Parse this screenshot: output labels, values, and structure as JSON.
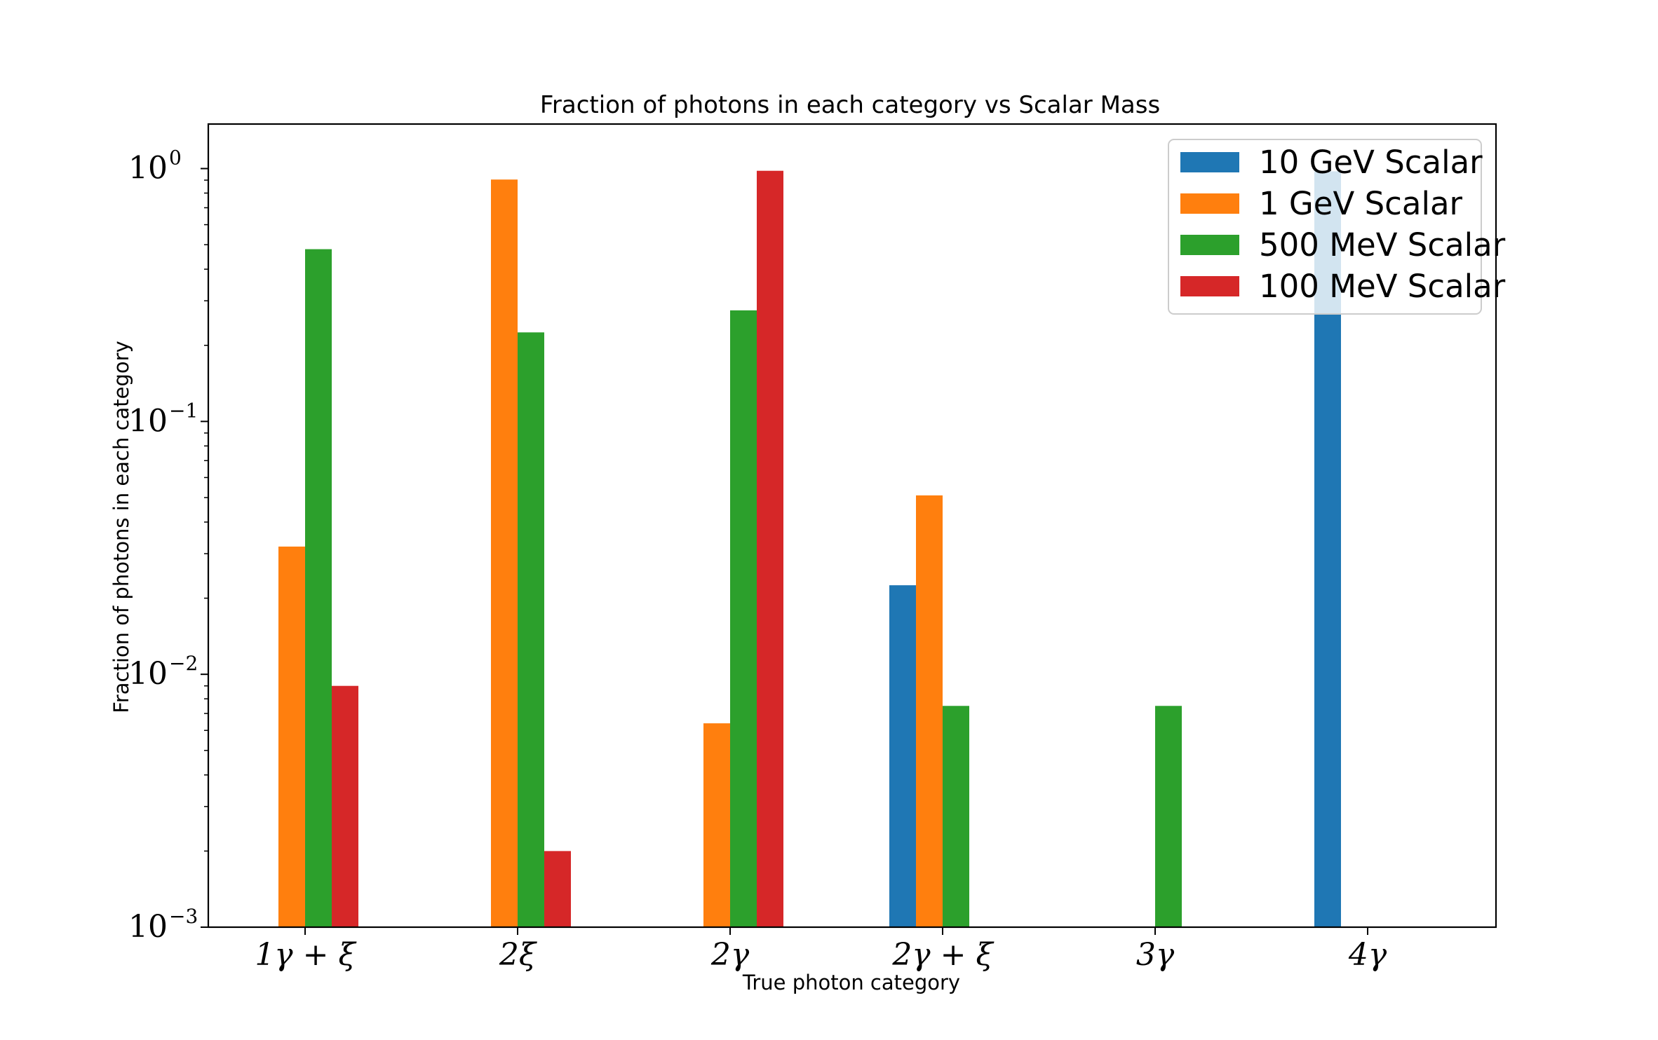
{
  "chart_data": {
    "type": "bar",
    "title": "Fraction of photons in each category vs Scalar Mass",
    "xlabel": "True photon category",
    "ylabel": "Fraction of photons in each category",
    "yscale": "log",
    "ylim": [
      0.001,
      1.5
    ],
    "yticks": [
      {
        "value": 1,
        "base": "10",
        "exp": "0"
      },
      {
        "value": 0.1,
        "base": "10",
        "exp": "−1"
      },
      {
        "value": 0.01,
        "base": "10",
        "exp": "−2"
      },
      {
        "value": 0.001,
        "base": "10",
        "exp": "−3"
      }
    ],
    "categories": [
      "1γ + ξ",
      "2ξ",
      "2γ",
      "2γ + ξ",
      "3γ",
      "4γ"
    ],
    "series": [
      {
        "name": "10 GeV Scalar",
        "color": "#1f77b4",
        "values": [
          0,
          0,
          0,
          0.0225,
          0,
          0.975
        ]
      },
      {
        "name": "1 GeV Scalar",
        "color": "#ff7f0e",
        "values": [
          0.032,
          0.905,
          0.0064,
          0.051,
          0,
          0
        ]
      },
      {
        "name": "500 MeV Scalar",
        "color": "#2ca02c",
        "values": [
          0.48,
          0.225,
          0.275,
          0.0075,
          0.0075,
          0
        ]
      },
      {
        "name": "100 MeV Scalar",
        "color": "#d62728",
        "values": [
          0.009,
          0.002,
          0.98,
          0,
          0,
          0
        ]
      }
    ],
    "grid": false,
    "legend_position": "upper-right"
  }
}
